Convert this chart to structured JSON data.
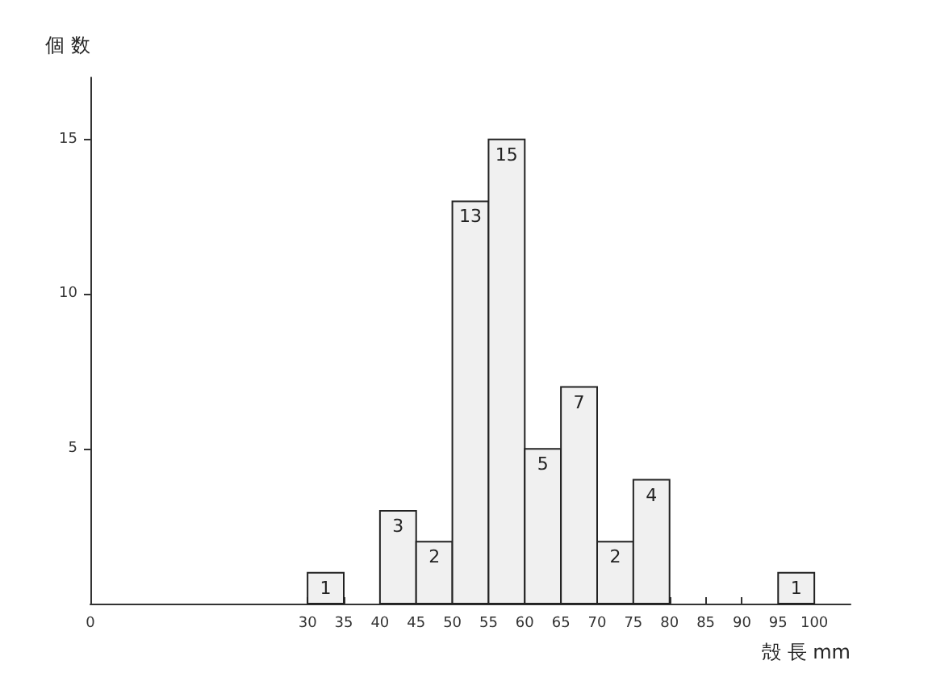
{
  "chart_data": {
    "type": "histogram",
    "xlabel": "殻 長 mm",
    "ylabel": "個 数",
    "bins": [
      30,
      35,
      40,
      45,
      50,
      55,
      60,
      65,
      70,
      75,
      80,
      85,
      90,
      95,
      100
    ],
    "values": [
      1,
      0,
      3,
      2,
      13,
      15,
      5,
      7,
      2,
      4,
      0,
      0,
      0,
      1
    ],
    "value_labels": [
      "1",
      null,
      "3",
      "2",
      "13",
      "15",
      "5",
      "7",
      "2",
      "4",
      null,
      null,
      null,
      "1"
    ],
    "color": "#f0f0f0",
    "xlim": [
      0,
      105
    ],
    "xticks": [
      0,
      30,
      35,
      40,
      45,
      50,
      55,
      60,
      65,
      70,
      75,
      80,
      85,
      90,
      95,
      100
    ],
    "ylim": [
      0,
      17
    ],
    "yticks": [
      5,
      10,
      15
    ],
    "grid": false
  }
}
